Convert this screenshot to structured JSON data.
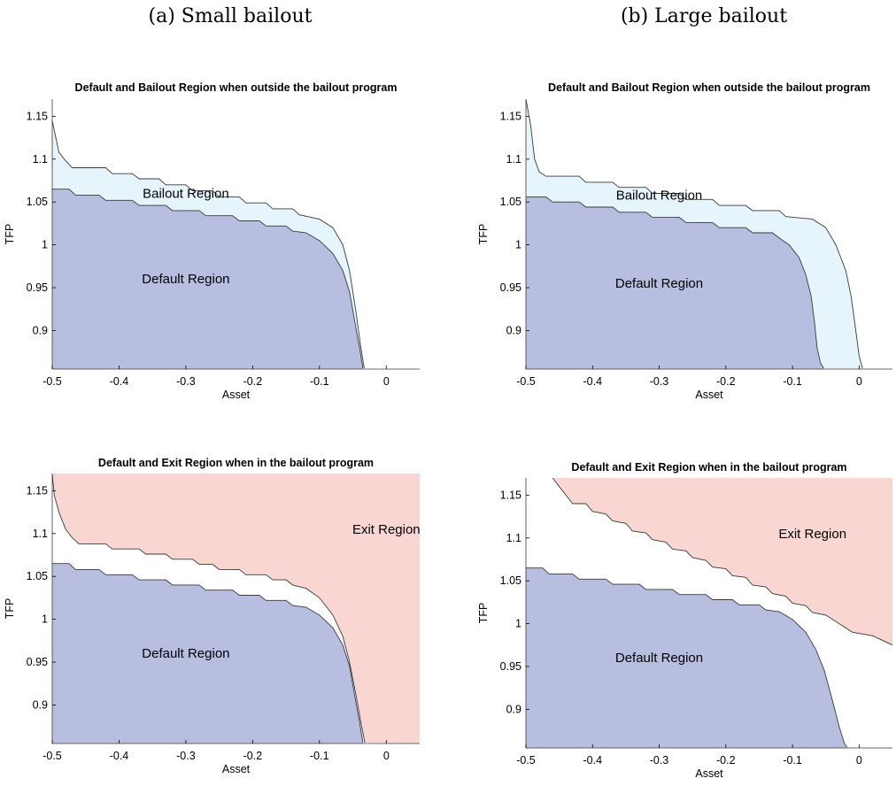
{
  "columns": {
    "a": "(a) Small bailout",
    "b": "(b) Large bailout"
  },
  "colors": {
    "default": "#b8bedf",
    "bailout": "#e6f4fb",
    "exit": "#f9d6d1",
    "boundary": "#3a3a3a"
  },
  "chart_data": [
    {
      "type": "area",
      "title": "Default and Bailout Region when outside the bailout program",
      "xlabel": "Asset",
      "ylabel": "TFP",
      "xlim": [
        -0.5,
        0.05
      ],
      "ylim": [
        0.855,
        1.17
      ],
      "xticks": [
        "-0.5",
        "-0.4",
        "-0.3",
        "-0.2",
        "-0.1",
        "0"
      ],
      "yticks": [
        "0.9",
        "0.95",
        "1",
        "1.05",
        "1.1",
        "1.15"
      ],
      "regions": [
        {
          "name": "Bailout Region",
          "label_at": [
            -0.3,
            1.055
          ],
          "upper": [
            [
              -0.5,
              1.145
            ],
            [
              -0.49,
              1.108
            ],
            [
              -0.48,
              1.098
            ],
            [
              -0.47,
              1.09
            ],
            [
              -0.42,
              1.09
            ],
            [
              -0.41,
              1.083
            ],
            [
              -0.38,
              1.083
            ],
            [
              -0.37,
              1.077
            ],
            [
              -0.34,
              1.077
            ],
            [
              -0.33,
              1.07
            ],
            [
              -0.3,
              1.07
            ],
            [
              -0.29,
              1.063
            ],
            [
              -0.26,
              1.063
            ],
            [
              -0.25,
              1.056
            ],
            [
              -0.22,
              1.056
            ],
            [
              -0.21,
              1.049
            ],
            [
              -0.18,
              1.049
            ],
            [
              -0.17,
              1.042
            ],
            [
              -0.14,
              1.042
            ],
            [
              -0.13,
              1.035
            ],
            [
              -0.1,
              1.03
            ],
            [
              -0.08,
              1.02
            ],
            [
              -0.065,
              1.0
            ],
            [
              -0.055,
              0.97
            ],
            [
              -0.045,
              0.92
            ],
            [
              -0.038,
              0.88
            ],
            [
              -0.033,
              0.856
            ]
          ],
          "lower": "Default Region"
        },
        {
          "name": "Default Region",
          "label_at": [
            -0.3,
            0.955
          ],
          "upper": [
            [
              -0.5,
              1.065
            ],
            [
              -0.475,
              1.065
            ],
            [
              -0.465,
              1.058
            ],
            [
              -0.43,
              1.058
            ],
            [
              -0.42,
              1.052
            ],
            [
              -0.38,
              1.052
            ],
            [
              -0.37,
              1.046
            ],
            [
              -0.33,
              1.046
            ],
            [
              -0.32,
              1.04
            ],
            [
              -0.28,
              1.04
            ],
            [
              -0.27,
              1.034
            ],
            [
              -0.23,
              1.034
            ],
            [
              -0.22,
              1.028
            ],
            [
              -0.19,
              1.028
            ],
            [
              -0.18,
              1.022
            ],
            [
              -0.15,
              1.022
            ],
            [
              -0.14,
              1.016
            ],
            [
              -0.12,
              1.014
            ],
            [
              -0.1,
              1.005
            ],
            [
              -0.08,
              0.99
            ],
            [
              -0.065,
              0.97
            ],
            [
              -0.055,
              0.945
            ],
            [
              -0.047,
              0.91
            ],
            [
              -0.04,
              0.88
            ],
            [
              -0.035,
              0.856
            ]
          ]
        }
      ]
    },
    {
      "type": "area",
      "title": "Default and Bailout Region when outside the bailout program",
      "xlabel": "Asset",
      "ylabel": "TFP",
      "xlim": [
        -0.5,
        0.05
      ],
      "ylim": [
        0.855,
        1.17
      ],
      "xticks": [
        "-0.5",
        "-0.4",
        "-0.3",
        "-0.2",
        "-0.1",
        "0"
      ],
      "yticks": [
        "0.9",
        "0.95",
        "1",
        "1.05",
        "1.1",
        "1.15"
      ],
      "regions": [
        {
          "name": "Bailout Region",
          "label_at": [
            -0.3,
            1.053
          ],
          "upper": [
            [
              -0.5,
              1.17
            ],
            [
              -0.493,
              1.14
            ],
            [
              -0.487,
              1.1
            ],
            [
              -0.48,
              1.085
            ],
            [
              -0.47,
              1.08
            ],
            [
              -0.42,
              1.08
            ],
            [
              -0.41,
              1.073
            ],
            [
              -0.37,
              1.073
            ],
            [
              -0.36,
              1.067
            ],
            [
              -0.32,
              1.067
            ],
            [
              -0.31,
              1.06
            ],
            [
              -0.27,
              1.06
            ],
            [
              -0.26,
              1.053
            ],
            [
              -0.22,
              1.053
            ],
            [
              -0.21,
              1.046
            ],
            [
              -0.17,
              1.046
            ],
            [
              -0.16,
              1.04
            ],
            [
              -0.12,
              1.04
            ],
            [
              -0.11,
              1.033
            ],
            [
              -0.07,
              1.03
            ],
            [
              -0.05,
              1.02
            ],
            [
              -0.035,
              1.0
            ],
            [
              -0.02,
              0.97
            ],
            [
              -0.012,
              0.94
            ],
            [
              -0.005,
              0.9
            ],
            [
              0,
              0.87
            ],
            [
              0.005,
              0.856
            ]
          ],
          "lower": "Default Region"
        },
        {
          "name": "Default Region",
          "label_at": [
            -0.3,
            0.95
          ],
          "upper": [
            [
              -0.5,
              1.056
            ],
            [
              -0.47,
              1.056
            ],
            [
              -0.46,
              1.05
            ],
            [
              -0.42,
              1.05
            ],
            [
              -0.41,
              1.044
            ],
            [
              -0.37,
              1.044
            ],
            [
              -0.36,
              1.038
            ],
            [
              -0.32,
              1.038
            ],
            [
              -0.31,
              1.032
            ],
            [
              -0.27,
              1.032
            ],
            [
              -0.26,
              1.026
            ],
            [
              -0.22,
              1.026
            ],
            [
              -0.21,
              1.02
            ],
            [
              -0.17,
              1.02
            ],
            [
              -0.16,
              1.014
            ],
            [
              -0.13,
              1.014
            ],
            [
              -0.12,
              1.008
            ],
            [
              -0.105,
              1.0
            ],
            [
              -0.09,
              0.985
            ],
            [
              -0.08,
              0.965
            ],
            [
              -0.072,
              0.94
            ],
            [
              -0.067,
              0.91
            ],
            [
              -0.063,
              0.88
            ],
            [
              -0.058,
              0.862
            ],
            [
              -0.053,
              0.856
            ]
          ]
        }
      ]
    },
    {
      "type": "area",
      "title": "Default and Exit Region when in the bailout program",
      "xlabel": "Asset",
      "ylabel": "TFP",
      "xlim": [
        -0.5,
        0.05
      ],
      "ylim": [
        0.855,
        1.17
      ],
      "xticks": [
        "-0.5",
        "-0.4",
        "-0.3",
        "-0.2",
        "-0.1",
        "0"
      ],
      "yticks": [
        "0.9",
        "0.95",
        "1",
        "1.05",
        "1.1",
        "1.15"
      ],
      "regions": [
        {
          "name": "Exit Region",
          "label_at": [
            0.0,
            1.1
          ],
          "lower": [
            [
              -0.5,
              1.17
            ],
            [
              -0.497,
              1.145
            ],
            [
              -0.49,
              1.125
            ],
            [
              -0.48,
              1.105
            ],
            [
              -0.47,
              1.095
            ],
            [
              -0.46,
              1.088
            ],
            [
              -0.42,
              1.088
            ],
            [
              -0.41,
              1.082
            ],
            [
              -0.37,
              1.082
            ],
            [
              -0.36,
              1.076
            ],
            [
              -0.33,
              1.076
            ],
            [
              -0.32,
              1.07
            ],
            [
              -0.29,
              1.07
            ],
            [
              -0.28,
              1.064
            ],
            [
              -0.26,
              1.064
            ],
            [
              -0.25,
              1.058
            ],
            [
              -0.22,
              1.058
            ],
            [
              -0.21,
              1.052
            ],
            [
              -0.18,
              1.052
            ],
            [
              -0.17,
              1.046
            ],
            [
              -0.15,
              1.046
            ],
            [
              -0.14,
              1.04
            ],
            [
              -0.12,
              1.036
            ],
            [
              -0.1,
              1.025
            ],
            [
              -0.08,
              1.005
            ],
            [
              -0.065,
              0.98
            ],
            [
              -0.055,
              0.95
            ],
            [
              -0.045,
              0.91
            ],
            [
              -0.037,
              0.875
            ],
            [
              -0.032,
              0.856
            ]
          ]
        },
        {
          "name": "Default Region",
          "label_at": [
            -0.3,
            0.955
          ],
          "upper": [
            [
              -0.5,
              1.065
            ],
            [
              -0.475,
              1.065
            ],
            [
              -0.465,
              1.058
            ],
            [
              -0.43,
              1.058
            ],
            [
              -0.42,
              1.052
            ],
            [
              -0.38,
              1.052
            ],
            [
              -0.37,
              1.046
            ],
            [
              -0.33,
              1.046
            ],
            [
              -0.32,
              1.04
            ],
            [
              -0.28,
              1.04
            ],
            [
              -0.27,
              1.034
            ],
            [
              -0.23,
              1.034
            ],
            [
              -0.22,
              1.028
            ],
            [
              -0.19,
              1.028
            ],
            [
              -0.18,
              1.022
            ],
            [
              -0.15,
              1.022
            ],
            [
              -0.14,
              1.016
            ],
            [
              -0.12,
              1.014
            ],
            [
              -0.1,
              1.005
            ],
            [
              -0.08,
              0.99
            ],
            [
              -0.065,
              0.97
            ],
            [
              -0.055,
              0.945
            ],
            [
              -0.047,
              0.91
            ],
            [
              -0.04,
              0.88
            ],
            [
              -0.035,
              0.856
            ]
          ]
        }
      ]
    },
    {
      "type": "area",
      "title": "Default and Exit Region when in the bailout program",
      "xlabel": "Asset",
      "ylabel": "TFP",
      "xlim": [
        -0.5,
        0.05
      ],
      "ylim": [
        0.855,
        1.17
      ],
      "xticks": [
        "-0.5",
        "-0.4",
        "-0.3",
        "-0.2",
        "-0.1",
        "0"
      ],
      "yticks": [
        "0.9",
        "0.95",
        "1",
        "1.05",
        "1.1",
        "1.15"
      ],
      "regions": [
        {
          "name": "Exit Region",
          "label_at": [
            -0.07,
            1.1
          ],
          "lower": [
            [
              -0.46,
              1.17
            ],
            [
              -0.45,
              1.16
            ],
            [
              -0.44,
              1.15
            ],
            [
              -0.43,
              1.14
            ],
            [
              -0.41,
              1.14
            ],
            [
              -0.4,
              1.131
            ],
            [
              -0.38,
              1.128
            ],
            [
              -0.37,
              1.12
            ],
            [
              -0.35,
              1.117
            ],
            [
              -0.34,
              1.108
            ],
            [
              -0.32,
              1.106
            ],
            [
              -0.31,
              1.098
            ],
            [
              -0.29,
              1.095
            ],
            [
              -0.28,
              1.087
            ],
            [
              -0.26,
              1.085
            ],
            [
              -0.25,
              1.077
            ],
            [
              -0.23,
              1.074
            ],
            [
              -0.22,
              1.066
            ],
            [
              -0.2,
              1.064
            ],
            [
              -0.19,
              1.056
            ],
            [
              -0.17,
              1.054
            ],
            [
              -0.16,
              1.045
            ],
            [
              -0.14,
              1.043
            ],
            [
              -0.13,
              1.035
            ],
            [
              -0.11,
              1.032
            ],
            [
              -0.1,
              1.024
            ],
            [
              -0.08,
              1.021
            ],
            [
              -0.07,
              1.013
            ],
            [
              -0.05,
              1.01
            ],
            [
              -0.03,
              1.0
            ],
            [
              -0.01,
              0.99
            ],
            [
              0.02,
              0.986
            ],
            [
              0.05,
              0.975
            ]
          ]
        },
        {
          "name": "Default Region",
          "label_at": [
            -0.3,
            0.955
          ],
          "upper": [
            [
              -0.5,
              1.065
            ],
            [
              -0.475,
              1.065
            ],
            [
              -0.465,
              1.058
            ],
            [
              -0.43,
              1.058
            ],
            [
              -0.42,
              1.052
            ],
            [
              -0.38,
              1.052
            ],
            [
              -0.37,
              1.046
            ],
            [
              -0.33,
              1.046
            ],
            [
              -0.32,
              1.04
            ],
            [
              -0.28,
              1.04
            ],
            [
              -0.27,
              1.034
            ],
            [
              -0.23,
              1.034
            ],
            [
              -0.22,
              1.028
            ],
            [
              -0.19,
              1.028
            ],
            [
              -0.18,
              1.022
            ],
            [
              -0.15,
              1.022
            ],
            [
              -0.14,
              1.016
            ],
            [
              -0.12,
              1.014
            ],
            [
              -0.1,
              1.005
            ],
            [
              -0.08,
              0.99
            ],
            [
              -0.065,
              0.97
            ],
            [
              -0.052,
              0.945
            ],
            [
              -0.04,
              0.91
            ],
            [
              -0.03,
              0.88
            ],
            [
              -0.022,
              0.86
            ],
            [
              -0.018,
              0.856
            ]
          ]
        }
      ]
    }
  ]
}
